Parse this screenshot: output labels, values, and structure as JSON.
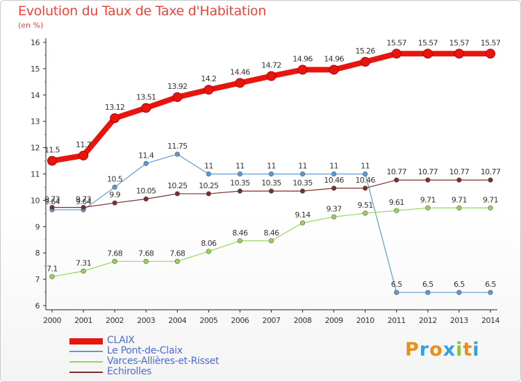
{
  "title": "Evolution du Taux de Taxe d'Habitation",
  "unit": "(en %)",
  "brand": {
    "text": "Proxiti",
    "colors": [
      "#e8901c",
      "#3aa0dc",
      "#e8901c",
      "#3aa0dc",
      "#86c440",
      "#e8901c",
      "#3aa0dc"
    ]
  },
  "chart_data": {
    "type": "line",
    "x": [
      2000,
      2001,
      2002,
      2003,
      2004,
      2005,
      2006,
      2007,
      2008,
      2009,
      2010,
      2011,
      2012,
      2013,
      2014
    ],
    "ylim": [
      6,
      16
    ],
    "yticks": [
      6,
      7,
      8,
      9,
      10,
      11,
      12,
      13,
      14,
      15,
      16
    ],
    "grid": false,
    "legend_position": "bottom-left",
    "series": [
      {
        "name": "CLAIX",
        "color": "#e8150f",
        "values": [
          11.5,
          11.7,
          13.12,
          13.51,
          13.92,
          14.2,
          14.46,
          14.72,
          14.96,
          14.96,
          15.26,
          15.57,
          15.57,
          15.57,
          15.57
        ],
        "labels": [
          "11.5",
          "11.7",
          "13.12",
          "13.51",
          "13.92",
          "14.2",
          "14.46",
          "14.72",
          "14.96",
          "14.96",
          "15.26",
          "15.57",
          "15.57",
          "15.57",
          "15.57"
        ]
      },
      {
        "name": "Le Pont-de-Claix",
        "color": "#5b9bd5",
        "values": [
          9.64,
          9.64,
          10.5,
          11.4,
          11.75,
          11,
          11,
          11,
          11,
          11,
          11,
          6.5,
          6.5,
          6.5,
          6.5
        ],
        "labels": [
          "9.64",
          "9.64",
          "10.5",
          "11.4",
          "11.75",
          "11",
          "11",
          "11",
          "11",
          "11",
          "11",
          "6.5",
          "6.5",
          "6.5",
          "6.5"
        ]
      },
      {
        "name": "Varces-Allières-et-Risset",
        "color": "#98d45a",
        "values": [
          7.1,
          7.31,
          7.68,
          7.68,
          7.68,
          8.06,
          8.46,
          8.46,
          9.14,
          9.37,
          9.51,
          9.61,
          9.71,
          9.71,
          9.71
        ],
        "labels": [
          "7.1",
          "7.31",
          "7.68",
          "7.68",
          "7.68",
          "8.06",
          "8.46",
          "8.46",
          "9.14",
          "9.37",
          "9.51",
          "9.61",
          "9.71",
          "9.71",
          "9.71"
        ]
      },
      {
        "name": "Echirolles",
        "color": "#7b2d2d",
        "values": [
          9.73,
          9.73,
          9.9,
          10.05,
          10.25,
          10.25,
          10.35,
          10.35,
          10.35,
          10.46,
          10.46,
          10.77,
          10.77,
          10.77,
          10.77
        ],
        "labels": [
          "9.73",
          "9.73",
          "9.9",
          "10.05",
          "10.25",
          "10.25",
          "10.35",
          "10.35",
          "10.35",
          "10.46",
          "10.46",
          "10.77",
          "10.77",
          "10.77",
          "10.77"
        ]
      }
    ]
  }
}
